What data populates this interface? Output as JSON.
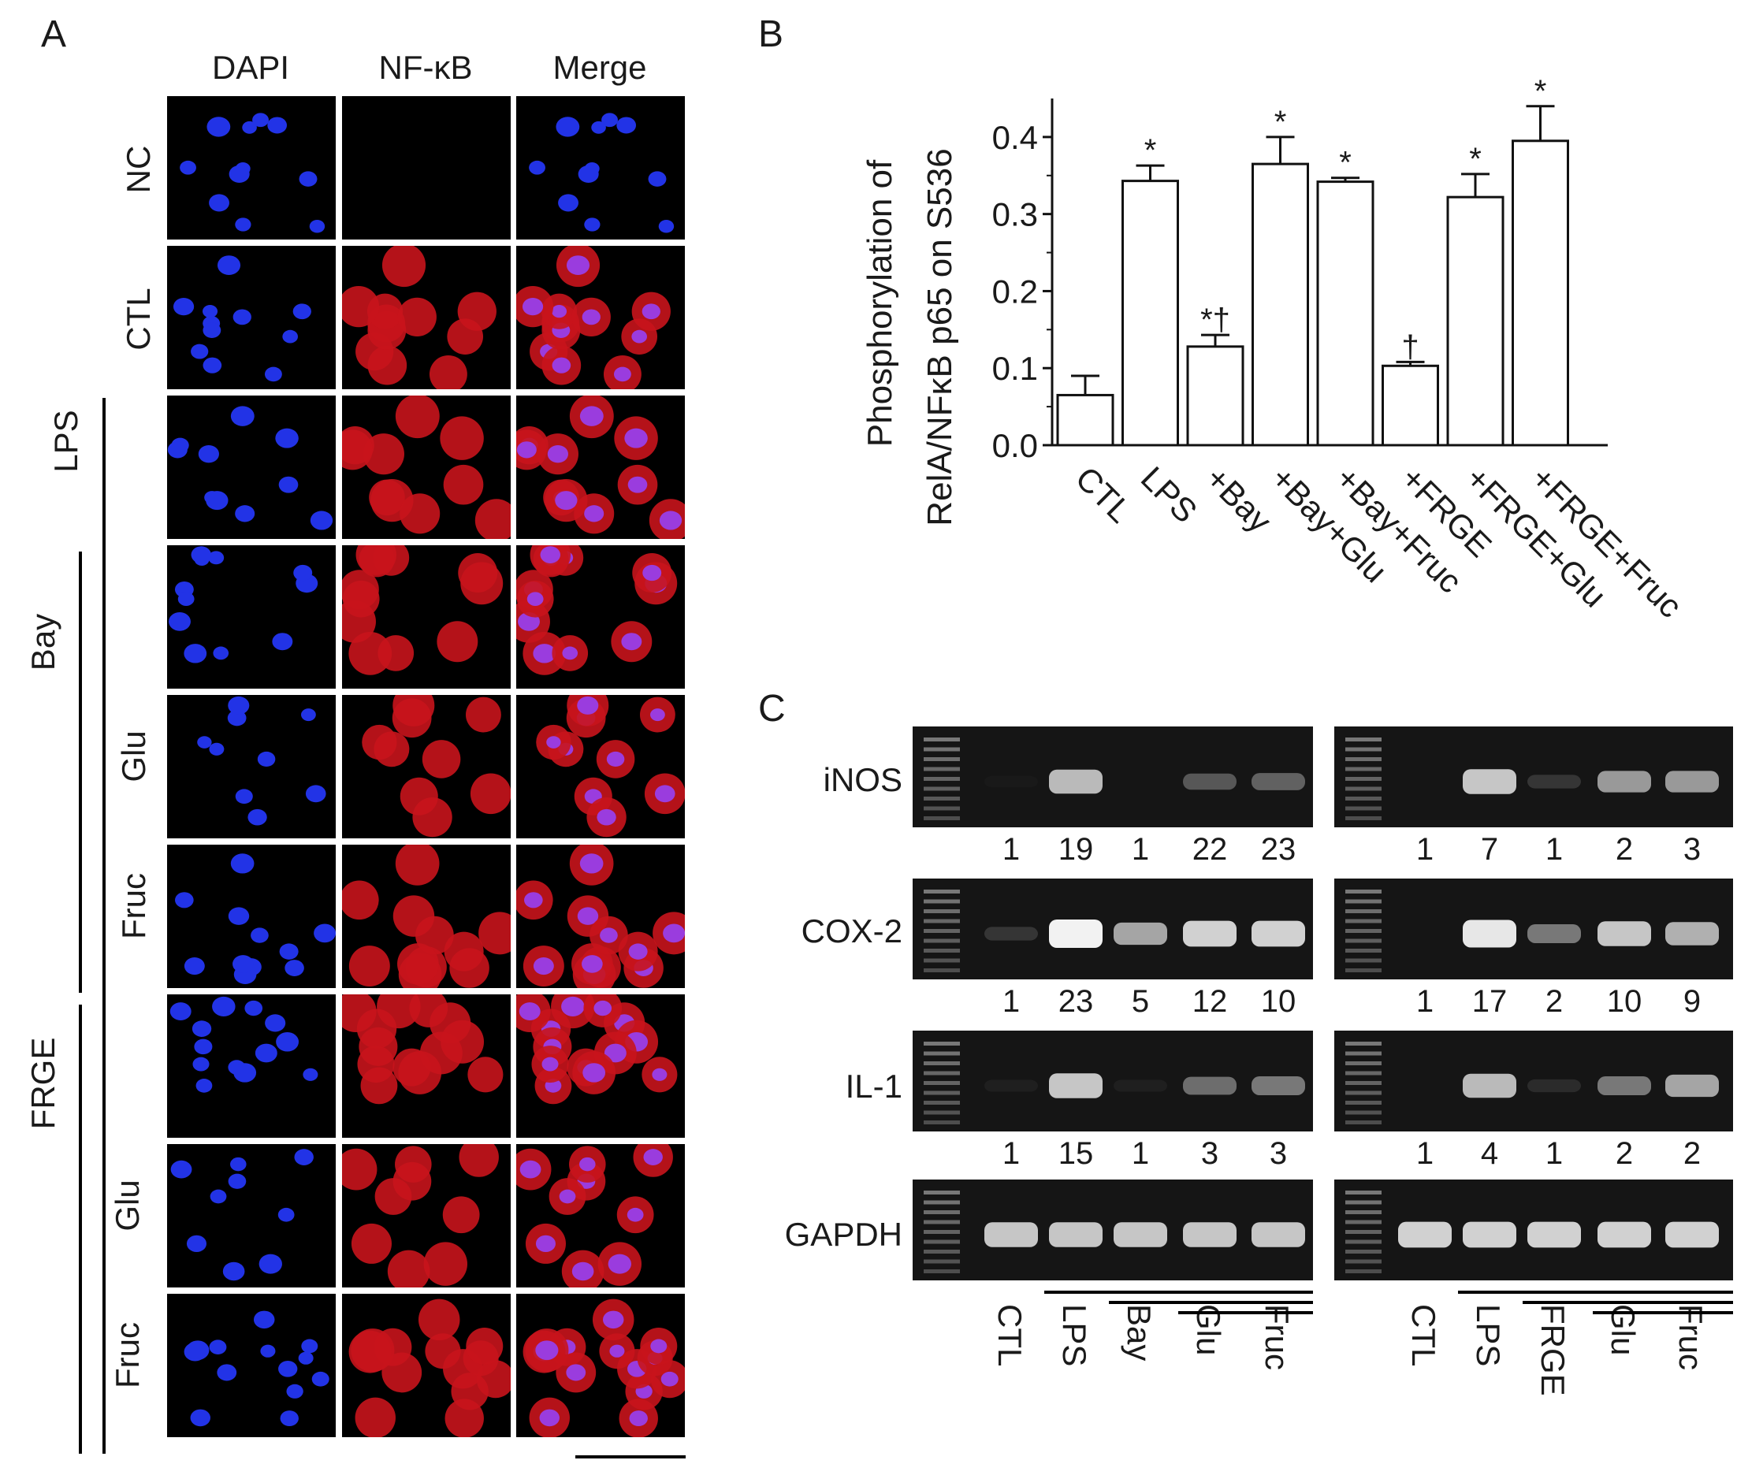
{
  "panels": {
    "a": "A",
    "b": "B",
    "c": "C"
  },
  "panel_a": {
    "columns": [
      "DAPI",
      "NF-κB",
      "Merge"
    ],
    "rows": [
      "NC",
      "CTL",
      "",
      "",
      "Glu",
      "Fruc",
      "",
      "Glu",
      "Fruc"
    ],
    "groups": [
      "LPS",
      "Bay",
      "FRGE"
    ]
  },
  "chart_data": {
    "type": "bar",
    "categories": [
      "CTL",
      "LPS",
      "+Bay",
      "+Bay+Glu",
      "+Bay+Fruc",
      "+FRGE",
      "+FRGE+Glu",
      "+FRGE+Fruc"
    ],
    "values": [
      0.065,
      0.343,
      0.128,
      0.365,
      0.342,
      0.103,
      0.322,
      0.395
    ],
    "errors": [
      0.025,
      0.02,
      0.015,
      0.035,
      0.005,
      0.005,
      0.03,
      0.045
    ],
    "annotations": [
      "",
      "*",
      "*†",
      "*",
      "*",
      "†",
      "*",
      "*"
    ],
    "ylabel_line1": "Phosphorylation of",
    "ylabel_line2": "RelA/NFκB p65 on S536",
    "ylim": [
      0,
      0.45
    ],
    "yticks": [
      "0.0",
      "0.1",
      "0.2",
      "0.3",
      "0.4"
    ],
    "grid": false
  },
  "panel_c": {
    "genes": [
      "iNOS",
      "COX-2",
      "IL-1",
      "GAPDH"
    ],
    "left_quant": [
      [
        "1",
        "19",
        "1",
        "22",
        "23"
      ],
      [
        "1",
        "23",
        "5",
        "12",
        "10"
      ],
      [
        "1",
        "15",
        "1",
        "3",
        "3"
      ]
    ],
    "right_quant": [
      [
        "1",
        "7",
        "1",
        "2",
        "3"
      ],
      [
        "1",
        "17",
        "2",
        "10",
        "9"
      ],
      [
        "1",
        "4",
        "1",
        "2",
        "2"
      ]
    ],
    "left_lanes": [
      "CTL",
      "LPS",
      "Bay",
      "Glu",
      "Fruc"
    ],
    "right_lanes": [
      "CTL",
      "LPS",
      "FRGE",
      "Glu",
      "Fruc"
    ],
    "left_intensity": [
      [
        0.02,
        0.75,
        0.0,
        0.3,
        0.35
      ],
      [
        0.15,
        1.0,
        0.65,
        0.85,
        0.85
      ],
      [
        0.05,
        0.8,
        0.05,
        0.4,
        0.45
      ],
      [
        0.8,
        0.8,
        0.8,
        0.8,
        0.8
      ]
    ],
    "right_intensity": [
      [
        0.0,
        0.8,
        0.15,
        0.6,
        0.6
      ],
      [
        0.0,
        0.95,
        0.45,
        0.8,
        0.7
      ],
      [
        0.0,
        0.75,
        0.1,
        0.45,
        0.65
      ],
      [
        0.85,
        0.85,
        0.85,
        0.85,
        0.85
      ]
    ]
  }
}
